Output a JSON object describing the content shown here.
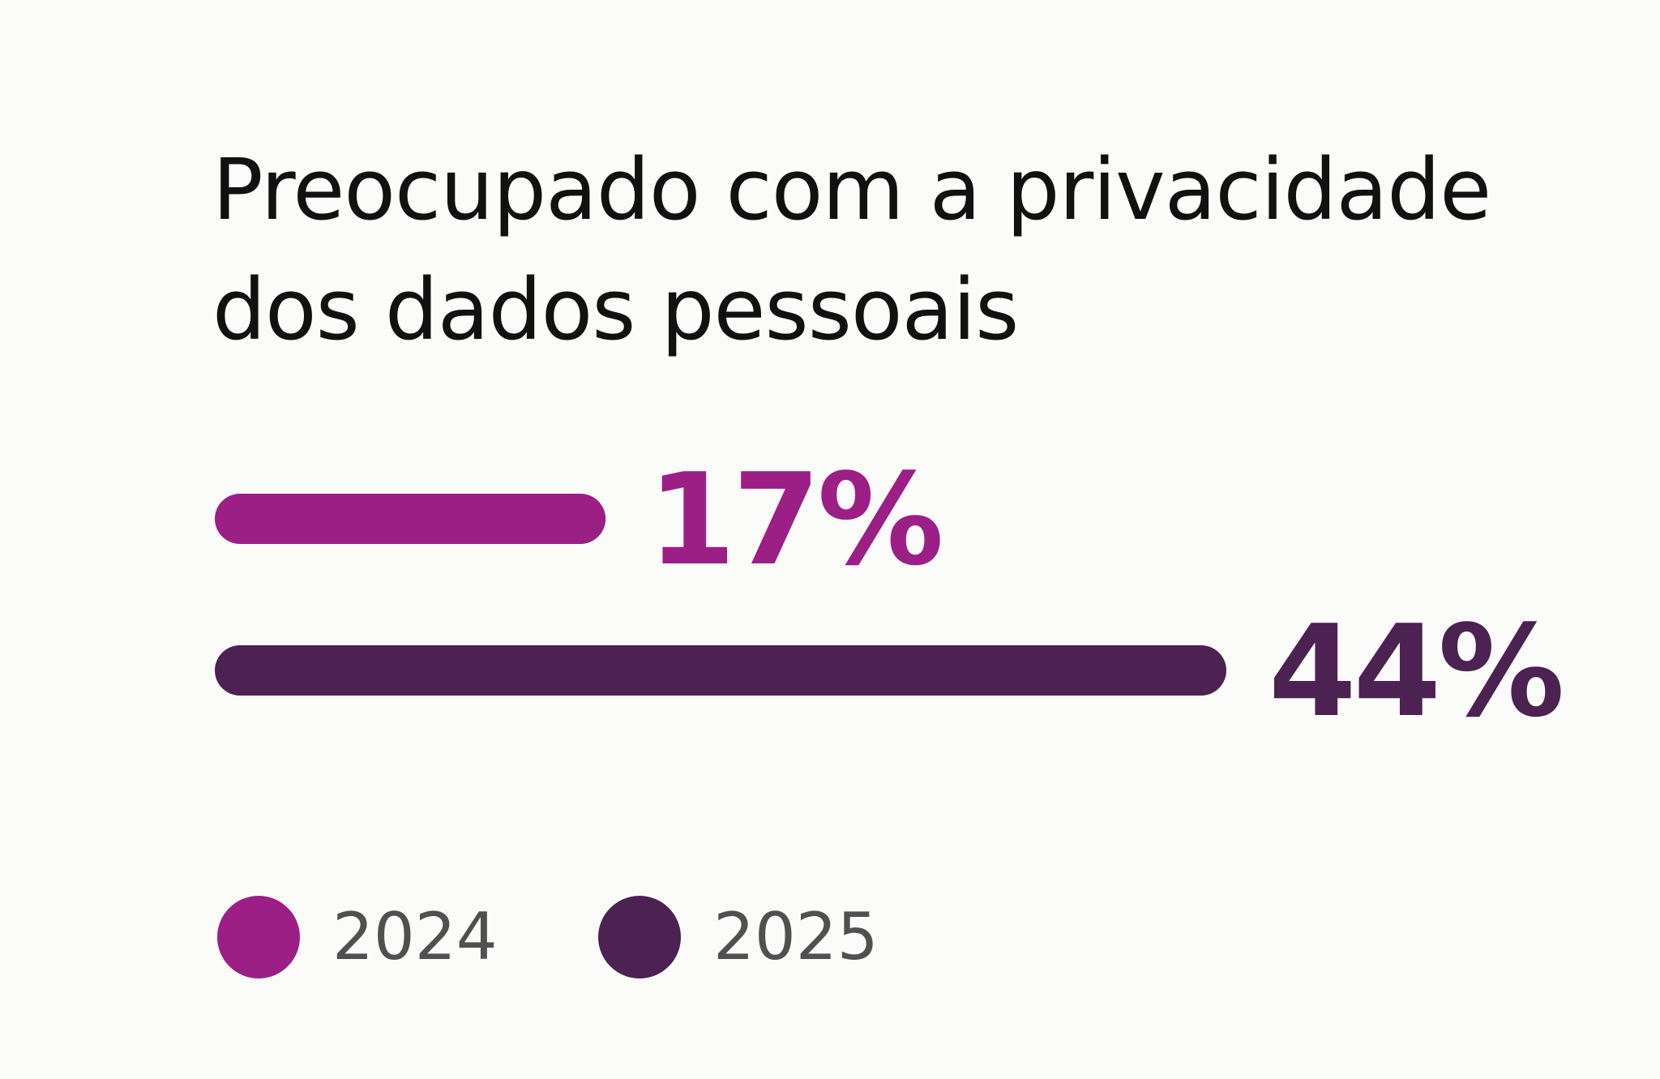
{
  "chart_data": {
    "type": "bar",
    "orientation": "horizontal",
    "title": "Preocupado com a privacidade dos dados pessoais",
    "xlabel": "",
    "ylabel": "",
    "grid": false,
    "legend_position": "bottom-left",
    "series": [
      {
        "name": "2024",
        "value": 17,
        "label": "17%",
        "color": "#9c1f86"
      },
      {
        "name": "2025",
        "value": 44,
        "label": "44%",
        "color": "#4b2252"
      }
    ]
  }
}
